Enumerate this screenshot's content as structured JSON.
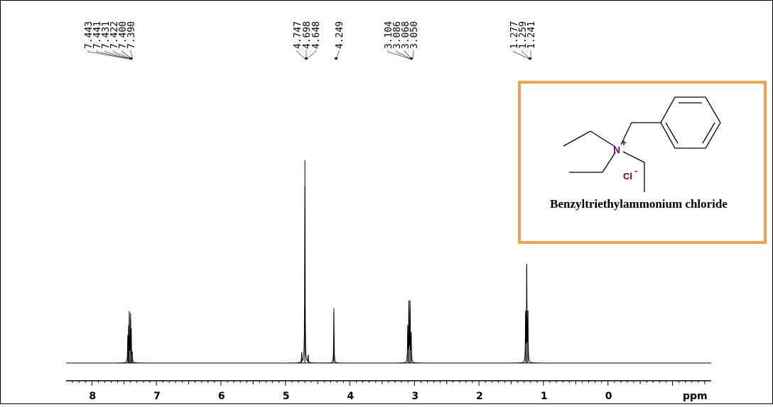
{
  "chart_data": {
    "type": "line",
    "xlabel": "ppm",
    "xlim": [
      8.4,
      -1.6
    ],
    "x_ticks": [
      "8",
      "7",
      "6",
      "5",
      "4",
      "3",
      "2",
      "1",
      "0"
    ],
    "x_tick_values": [
      8,
      7,
      6,
      5,
      4,
      3,
      2,
      1,
      0
    ],
    "peak_groups": [
      {
        "labels": [
          "7.443",
          "7.441",
          "7.431",
          "7.422",
          "7.400",
          "7.390"
        ]
      },
      {
        "labels": [
          "4.747",
          "4.698",
          "4.648"
        ]
      },
      {
        "labels": [
          "4.249"
        ]
      },
      {
        "labels": [
          "3.104",
          "3.086",
          "3.068",
          "3.050"
        ]
      },
      {
        "labels": [
          "1.277",
          "1.259",
          "1.241"
        ]
      }
    ],
    "peaks": [
      {
        "ppm": 7.443,
        "height": 0.12
      },
      {
        "ppm": 7.431,
        "height": 0.16
      },
      {
        "ppm": 7.42,
        "height": 0.23
      },
      {
        "ppm": 7.4,
        "height": 0.22
      },
      {
        "ppm": 7.39,
        "height": 0.14
      },
      {
        "ppm": 7.375,
        "height": 0.05
      },
      {
        "ppm": 4.747,
        "height": 0.05
      },
      {
        "ppm": 4.698,
        "height": 1.0
      },
      {
        "ppm": 4.648,
        "height": 0.04
      },
      {
        "ppm": 4.249,
        "height": 0.27
      },
      {
        "ppm": 3.104,
        "height": 0.18
      },
      {
        "ppm": 3.086,
        "height": 0.3
      },
      {
        "ppm": 3.068,
        "height": 0.31
      },
      {
        "ppm": 3.05,
        "height": 0.14
      },
      {
        "ppm": 1.277,
        "height": 0.24
      },
      {
        "ppm": 1.259,
        "height": 0.49
      },
      {
        "ppm": 1.241,
        "height": 0.26
      }
    ],
    "grid": false
  },
  "structure": {
    "name": "Benzyltriethylammonium chloride",
    "nitrogen_label": "N",
    "nitrogen_charge": "+",
    "chloride_label": "Cl",
    "chloride_charge": "-",
    "frame_color": "#f5a04e"
  }
}
